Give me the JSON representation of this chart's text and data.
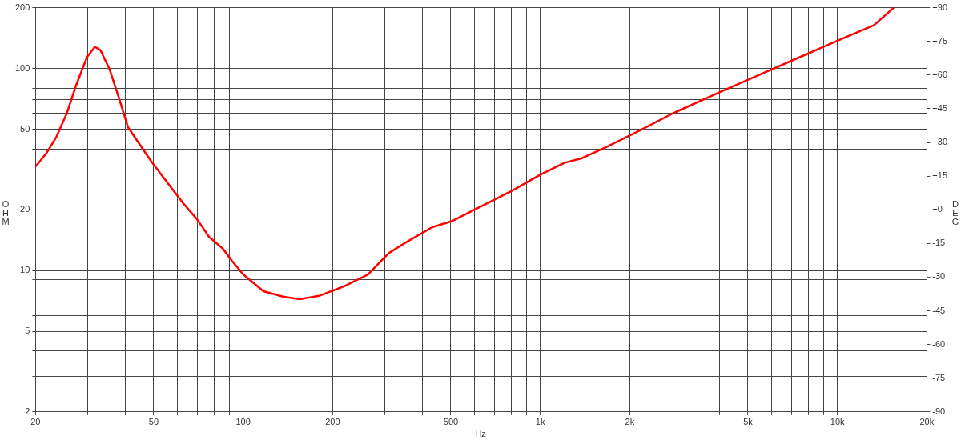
{
  "chart_data": {
    "type": "line",
    "xlabel": "Hz",
    "ylabel": "OHM",
    "y2label": "DEG",
    "log": "xy",
    "grid": true,
    "legend": false,
    "marker": "none",
    "line_style": "solid",
    "xlim": [
      20,
      20000
    ],
    "ylim": [
      2,
      200
    ],
    "y2lim": [
      -90,
      90
    ],
    "xticks": [
      20,
      {
        "value": 30,
        "label": null
      },
      {
        "value": 40,
        "label": null
      },
      50,
      {
        "value": 60,
        "label": null
      },
      {
        "value": 70,
        "label": null
      },
      {
        "value": 80,
        "label": null
      },
      {
        "value": 90,
        "label": null
      },
      100,
      200,
      {
        "value": 300,
        "label": null
      },
      {
        "value": 400,
        "label": null
      },
      500,
      {
        "value": 600,
        "label": null
      },
      {
        "value": 700,
        "label": null
      },
      {
        "value": 800,
        "label": null
      },
      {
        "value": 900,
        "label": null
      },
      {
        "value": 1000,
        "label": "1k"
      },
      {
        "value": 2000,
        "label": "2k"
      },
      {
        "value": 3000,
        "label": null
      },
      {
        "value": 4000,
        "label": null
      },
      {
        "value": 5000,
        "label": "5k"
      },
      {
        "value": 6000,
        "label": null
      },
      {
        "value": 7000,
        "label": null
      },
      {
        "value": 8000,
        "label": null
      },
      {
        "value": 9000,
        "label": null
      },
      {
        "value": 10000,
        "label": "10k"
      },
      {
        "value": 20000,
        "label": "20k"
      }
    ],
    "yticks": [
      2,
      {
        "value": 3,
        "label": null
      },
      {
        "value": 4,
        "label": null
      },
      5,
      {
        "value": 6,
        "label": null
      },
      {
        "value": 7,
        "label": null
      },
      {
        "value": 8,
        "label": null
      },
      {
        "value": 9,
        "label": null
      },
      10,
      20,
      {
        "value": 30,
        "label": null
      },
      {
        "value": 40,
        "label": null
      },
      50,
      {
        "value": 60,
        "label": null
      },
      {
        "value": 70,
        "label": null
      },
      {
        "value": 80,
        "label": null
      },
      {
        "value": 90,
        "label": null
      },
      100,
      200
    ],
    "y2ticks": [
      -90,
      -75,
      -60,
      -45,
      -30,
      -15,
      {
        "value": 0,
        "label": "+0"
      },
      {
        "value": 15,
        "label": "+15"
      },
      {
        "value": 30,
        "label": "+30"
      },
      {
        "value": 45,
        "label": "+45"
      },
      {
        "value": 60,
        "label": "+60"
      },
      {
        "value": 75,
        "label": "+75"
      },
      {
        "value": 90,
        "label": "+90"
      }
    ],
    "series": [
      {
        "color": "#ff0000",
        "x": [
          20,
          21.8,
          23.5,
          25.5,
          27.4,
          29.8,
          31.7,
          33.1,
          35.5,
          38.1,
          41,
          49,
          55.5,
          62.9,
          70,
          76.7,
          85.6,
          91.5,
          100,
          117,
          137,
          155,
          180,
          218,
          263,
          309,
          359,
          433,
          506,
          629,
          806,
          1000,
          1208,
          1368,
          1700,
          2182,
          2800,
          4065,
          5550,
          7574,
          10340,
          13260,
          15480
        ],
        "values": [
          32.7,
          38.2,
          45.8,
          60.1,
          82.7,
          113.8,
          128,
          123,
          99.2,
          72.2,
          51.1,
          34.8,
          27.3,
          21.5,
          17.9,
          14.7,
          12.8,
          11.2,
          9.57,
          7.91,
          7.42,
          7.22,
          7.5,
          8.35,
          9.57,
          12.2,
          14,
          16.4,
          17.6,
          20.7,
          24.9,
          29.8,
          34.2,
          35.8,
          41.4,
          49.7,
          60.1,
          77,
          94,
          114.8,
          140,
          163.7,
          200
        ]
      }
    ]
  }
}
